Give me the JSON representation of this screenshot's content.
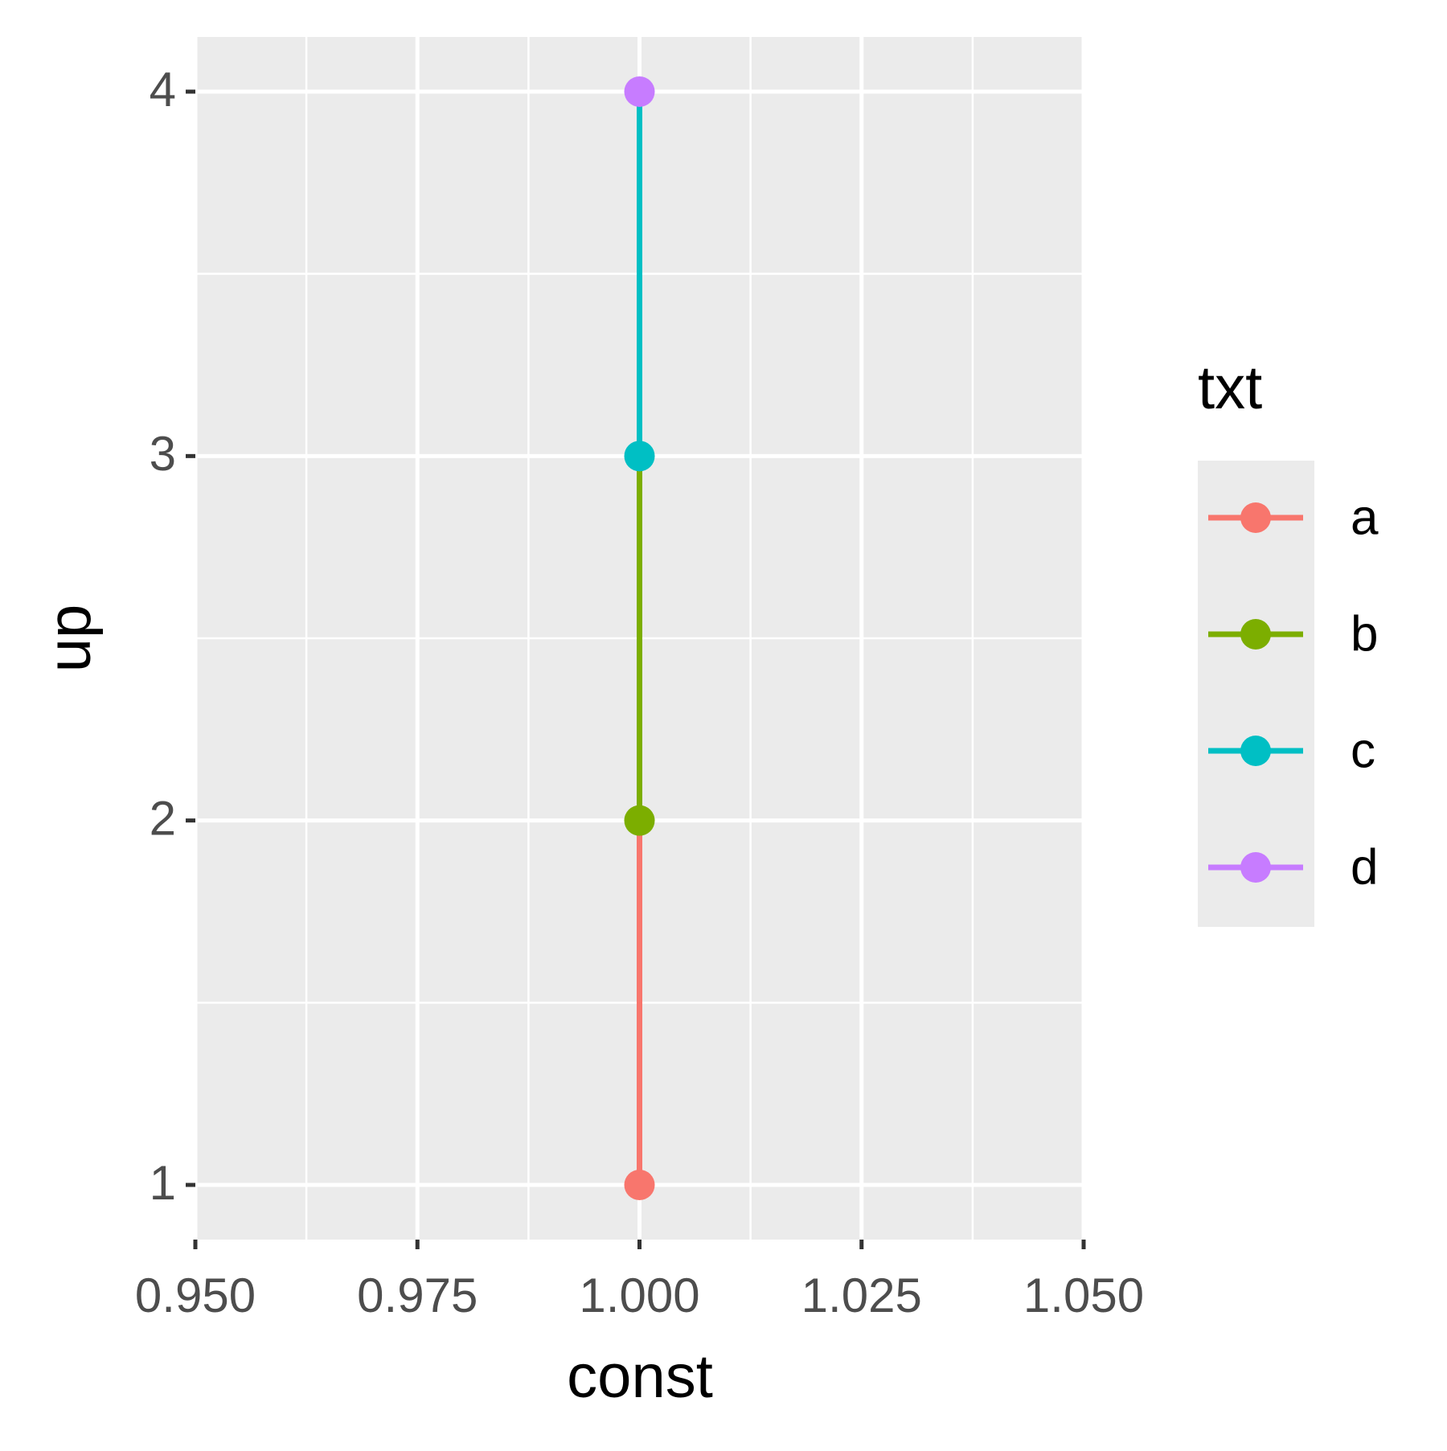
{
  "chart_data": {
    "type": "line",
    "x_label": "const",
    "y_label": "up",
    "legend_title": "txt",
    "series": [
      {
        "name": "a",
        "color": "#F8766D",
        "x": [
          1
        ],
        "values": [
          1
        ]
      },
      {
        "name": "b",
        "color": "#7CAE00",
        "x": [
          1
        ],
        "values": [
          2
        ]
      },
      {
        "name": "c",
        "color": "#00BFC4",
        "x": [
          1
        ],
        "values": [
          3
        ]
      },
      {
        "name": "d",
        "color": "#C77CFF",
        "x": [
          1
        ],
        "values": [
          4
        ]
      }
    ],
    "xlim": [
      0.95,
      1.05
    ],
    "xticks": [
      {
        "value": 0.95,
        "label": "0.950"
      },
      {
        "value": 0.975,
        "label": "0.975"
      },
      {
        "value": 1,
        "label": "1.000"
      },
      {
        "value": 1.025,
        "label": "1.025"
      },
      {
        "value": 1.05,
        "label": "1.050"
      }
    ],
    "ylim": [
      0.85,
      4.15
    ],
    "yticks": [
      1,
      2,
      3,
      4
    ],
    "grid": true,
    "legend": "right"
  }
}
